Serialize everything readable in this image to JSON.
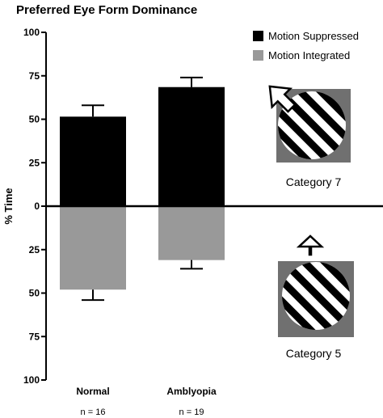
{
  "chart_data": {
    "type": "bar",
    "title": "Preferred Eye Form Dominance",
    "ylabel": "% Time",
    "xlabel": "",
    "categories": [
      "Normal",
      "Amblyopia"
    ],
    "category_notes": [
      "n = 16",
      "n = 19"
    ],
    "ylim_upper": [
      0,
      100
    ],
    "ylim_lower": [
      0,
      100
    ],
    "yticks": [
      "100",
      "75",
      "50",
      "25",
      "0",
      "25",
      "50",
      "75",
      "100"
    ],
    "series": [
      {
        "name": "Motion Suppressed",
        "direction": "up",
        "color": "#000000",
        "values": [
          51.5,
          68.5
        ],
        "error": [
          6.5,
          5.5
        ]
      },
      {
        "name": "Motion Integrated",
        "direction": "down",
        "color": "#999999",
        "values": [
          48,
          31
        ],
        "error": [
          6,
          5
        ]
      }
    ],
    "legend_position": "top-right",
    "grid": false,
    "insets": [
      {
        "caption": "Category 7",
        "arrow": "up-left"
      },
      {
        "caption": "Category 5",
        "arrow": "up"
      }
    ]
  }
}
